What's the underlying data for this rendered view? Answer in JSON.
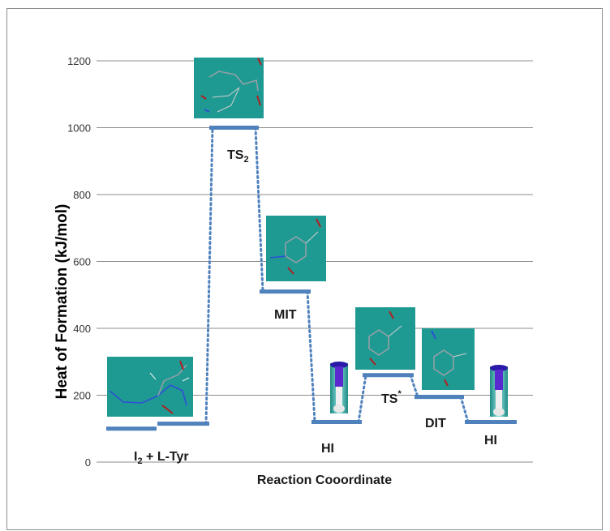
{
  "chart_data": {
    "type": "line",
    "title": "",
    "xlabel": "Reaction Cooordinate",
    "ylabel": "Heat of Formation (kJ/mol)",
    "ylim": [
      0,
      1200
    ],
    "yticks": [
      0,
      200,
      400,
      600,
      800,
      1000,
      1200
    ],
    "grid": true,
    "series": [
      {
        "levels": [
          {
            "label": "I2 + L-Tyr",
            "value": 100
          },
          {
            "label": "",
            "value": 115
          },
          {
            "label": "TS2",
            "value": 1000
          },
          {
            "label": "MIT",
            "value": 510
          },
          {
            "label": "HI",
            "value": 120
          },
          {
            "label": "TS*",
            "value": 260
          },
          {
            "label": "DIT",
            "value": 195
          },
          {
            "label": "HI",
            "value": 120
          }
        ]
      }
    ],
    "colors": {
      "level": "#4f81bd",
      "connector": "#4f81bd",
      "structure_bg": "#1f9a93",
      "grid": "#8c8c8c"
    }
  }
}
